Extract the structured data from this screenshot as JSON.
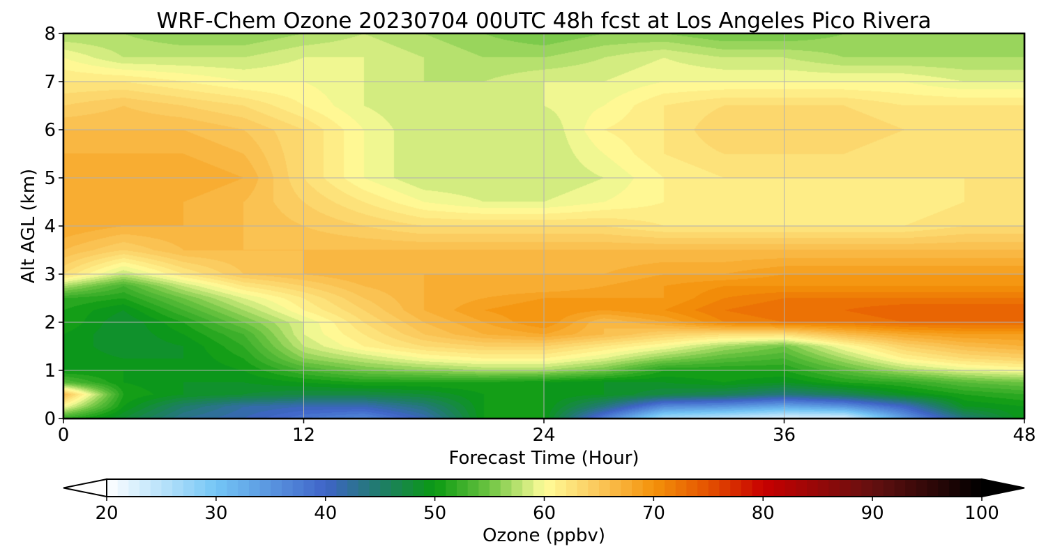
{
  "chart_data": {
    "type": "heatmap",
    "title": "WRF-Chem Ozone  20230704 00UTC 48h fcst at Los Angeles Pico Rivera",
    "xlabel": "Forecast Time (Hour)",
    "ylabel": "Alt AGL (km)",
    "xlim": [
      0,
      48
    ],
    "ylim": [
      0,
      8
    ],
    "xticks": [
      0,
      12,
      24,
      36,
      48
    ],
    "yticks": [
      0,
      1,
      2,
      3,
      4,
      5,
      6,
      7,
      8
    ],
    "grid": true,
    "x": [
      0,
      3,
      6,
      9,
      12,
      15,
      18,
      21,
      24,
      27,
      30,
      33,
      36,
      39,
      42,
      45,
      48
    ],
    "y": [
      0,
      0.25,
      0.5,
      0.75,
      1,
      1.25,
      1.5,
      1.75,
      2,
      2.25,
      2.5,
      2.75,
      3,
      3.5,
      4,
      4.5,
      5,
      5.5,
      6,
      6.5,
      7,
      7.5,
      8
    ],
    "z": [
      [
        52,
        48,
        43,
        41,
        38,
        36,
        41,
        50,
        50,
        37,
        26,
        24,
        22,
        22,
        34,
        44,
        50
      ],
      [
        60,
        50,
        45,
        42,
        41,
        41,
        44,
        50,
        50,
        44,
        36,
        35,
        33,
        35,
        40,
        49,
        50
      ],
      [
        66,
        51,
        49,
        48,
        47,
        47,
        48,
        50,
        50,
        49,
        47,
        46,
        44,
        46,
        49,
        51,
        52
      ],
      [
        54,
        50,
        49,
        49,
        50,
        51,
        51,
        51,
        50,
        49,
        49,
        50,
        49,
        51,
        52,
        54,
        55
      ],
      [
        50,
        50,
        49,
        50,
        53,
        55,
        56,
        57,
        57,
        55,
        51,
        51,
        51,
        54,
        57,
        59,
        60
      ],
      [
        50,
        49,
        49,
        51,
        56,
        58,
        60,
        61,
        61,
        59,
        56,
        54,
        53,
        57,
        61,
        63,
        64
      ],
      [
        50,
        48,
        49,
        52,
        58,
        61,
        63,
        64,
        64,
        62,
        60,
        57,
        55,
        60,
        64,
        66,
        67
      ],
      [
        50,
        48,
        50,
        53,
        59,
        62,
        65,
        67,
        68,
        66,
        64,
        63,
        63,
        66,
        68,
        69,
        69
      ],
      [
        51,
        48,
        51,
        55,
        59,
        63,
        66,
        68,
        70,
        66,
        68,
        71,
        72,
        72,
        73,
        73,
        73
      ],
      [
        51,
        49,
        53,
        57,
        61,
        64,
        67,
        69,
        70,
        69,
        70,
        72,
        73,
        73,
        74,
        74,
        74
      ],
      [
        52,
        51,
        55,
        59,
        62,
        65,
        67,
        68,
        69,
        69,
        69,
        71,
        72,
        72,
        72,
        72,
        72
      ],
      [
        57,
        53,
        58,
        62,
        64,
        66,
        67,
        67,
        67,
        68,
        69,
        70,
        70,
        70,
        70,
        70,
        70
      ],
      [
        63,
        58,
        62,
        65,
        66,
        67,
        67,
        67,
        67,
        67,
        68,
        68,
        69,
        69,
        69,
        69,
        69
      ],
      [
        66,
        64,
        66,
        66,
        66,
        66,
        66,
        66,
        66,
        66,
        66,
        66,
        66,
        66,
        66,
        66,
        66
      ],
      [
        68,
        67,
        67,
        66,
        65,
        64,
        63,
        63,
        63,
        63,
        62,
        62,
        62,
        62,
        62,
        63,
        63
      ],
      [
        68,
        67,
        67,
        66,
        64,
        62,
        60,
        59,
        59,
        60,
        61,
        61,
        61,
        61,
        61,
        62,
        62
      ],
      [
        68,
        68,
        68,
        67,
        63,
        60,
        58,
        58,
        58,
        59,
        61,
        62,
        62,
        62,
        62,
        62,
        62
      ],
      [
        67,
        67,
        67,
        66,
        63,
        60,
        58,
        58,
        58,
        60,
        62,
        63,
        63,
        63,
        62,
        62,
        62
      ],
      [
        66,
        66,
        66,
        65,
        63,
        60,
        58,
        58,
        58,
        61,
        62,
        64,
        64,
        64,
        63,
        63,
        63
      ],
      [
        64,
        65,
        64,
        63,
        61,
        59,
        58,
        58,
        59,
        60,
        62,
        63,
        63,
        63,
        62,
        62,
        62
      ],
      [
        62,
        62,
        61,
        60,
        60,
        59,
        58,
        58,
        59,
        59,
        60,
        60,
        60,
        60,
        60,
        59,
        59
      ],
      [
        60,
        58,
        58,
        58,
        59,
        59,
        58,
        57,
        57,
        58,
        59,
        58,
        58,
        57,
        57,
        57,
        57
      ],
      [
        57,
        57,
        56,
        56,
        57,
        58,
        57,
        56,
        55,
        56,
        56,
        55,
        55,
        56,
        56,
        56,
        56
      ]
    ],
    "colorbar": {
      "label": "Ozone  (ppbv)",
      "min": 20,
      "max": 100,
      "ticks": [
        20,
        30,
        40,
        50,
        60,
        70,
        80,
        90,
        100
      ],
      "extend": "both",
      "colors": [
        {
          "v": 20,
          "c": "#ffffff"
        },
        {
          "v": 30,
          "c": "#74c6f6"
        },
        {
          "v": 40,
          "c": "#3f64c8"
        },
        {
          "v": 45,
          "c": "#1f7c6a"
        },
        {
          "v": 50,
          "c": "#0a9a12"
        },
        {
          "v": 55,
          "c": "#6dc442"
        },
        {
          "v": 60,
          "c": "#fffd9a"
        },
        {
          "v": 65,
          "c": "#fbc75a"
        },
        {
          "v": 70,
          "c": "#f4920a"
        },
        {
          "v": 75,
          "c": "#e45200"
        },
        {
          "v": 80,
          "c": "#c80000"
        },
        {
          "v": 90,
          "c": "#641010"
        },
        {
          "v": 100,
          "c": "#000000"
        }
      ]
    }
  }
}
